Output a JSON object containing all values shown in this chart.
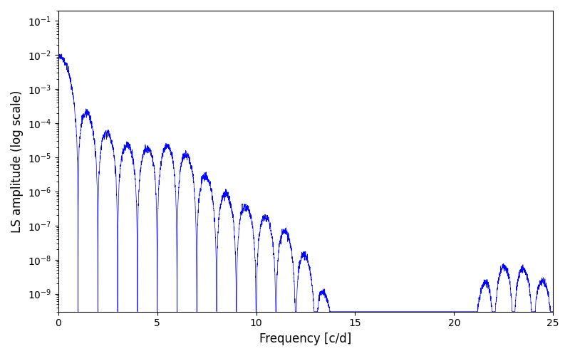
{
  "xlabel": "Frequency [c/d]",
  "ylabel": "LS amplitude (log scale)",
  "line_color": "blue",
  "xlim": [
    0,
    25
  ],
  "ylim": [
    3e-10,
    0.2
  ],
  "figsize": [
    8.0,
    5.0
  ],
  "dpi": 100,
  "background_color": "#ffffff",
  "xticks": [
    0,
    5,
    10,
    15,
    20,
    25
  ]
}
